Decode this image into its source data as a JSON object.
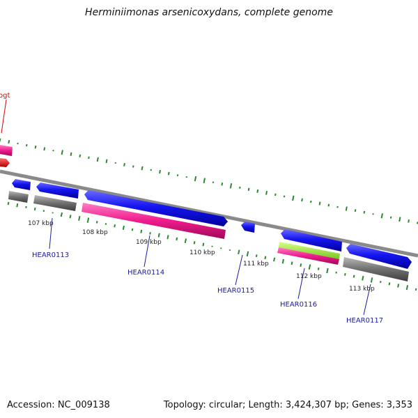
{
  "title": "Herminiimonas arsenicoxydans, complete genome",
  "footer": {
    "accession": "Accession: NC_009138",
    "stats": "Topology: circular; Length: 3,424,307 bp; Genes: 3,353"
  },
  "genes": [
    {
      "id": "ogt",
      "label": "ogt",
      "color": "#dd0000"
    },
    {
      "id": "hear0113",
      "label": "HEAR0113",
      "color": "#1a1aa0"
    },
    {
      "id": "hear0114",
      "label": "HEAR0114",
      "color": "#1a1aa0"
    },
    {
      "id": "hear0115",
      "label": "HEAR0115",
      "color": "#1a1aa0"
    },
    {
      "id": "hear0116",
      "label": "HEAR0116",
      "color": "#1a1aa0"
    },
    {
      "id": "hear0117",
      "label": "HEAR0117",
      "color": "#1a1aa0"
    }
  ],
  "ticks": [
    "107 kbp",
    "108 kbp",
    "109 kbp",
    "110 kbp",
    "111 kbp",
    "112 kbp",
    "113 kbp"
  ],
  "colors": {
    "cds_blue": "#1010e0",
    "rrna_pink": "#ee1b8c",
    "trna_green": "#9ee830",
    "gray_feature": "#6e6e6e",
    "backbone": "#8a8a8a",
    "gc_dots": "#2a8a2a"
  }
}
